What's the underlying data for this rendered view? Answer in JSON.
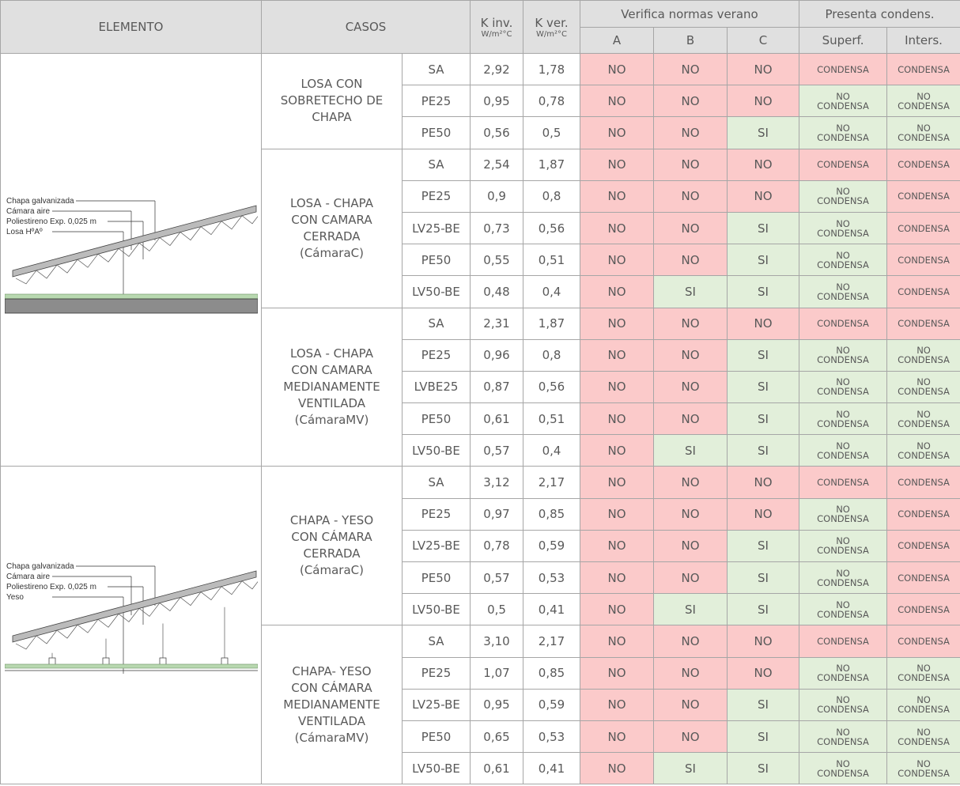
{
  "header": {
    "elemento": "ELEMENTO",
    "casos": "CASOS",
    "k_inv": "K inv.",
    "k_inv_unit": "W/m²°C",
    "k_ver": "K ver.",
    "k_ver_unit": "W/m²°C",
    "verifica": "Verifica normas verano",
    "a": "A",
    "b": "B",
    "c": "C",
    "presenta": "Presenta condens.",
    "superf": "Superf.",
    "inters": "Inters."
  },
  "groups": [
    {
      "element": {
        "labels": [
          "Chapa galvanizada",
          "Cámara aire",
          "Poliestireno Exp. 0,025 m",
          "Losa HºAº"
        ]
      },
      "cases": [
        {
          "name": [
            "LOSA CON",
            "SOBRETECHO DE",
            "CHAPA"
          ],
          "rows": [
            [
              "SA",
              "2,92",
              "1,78",
              "NO",
              "NO",
              "NO",
              "CONDENSA",
              "CONDENSA"
            ],
            [
              "PE25",
              "0,95",
              "0,78",
              "NO",
              "NO",
              "NO",
              "NO CONDENSA",
              "NO CONDENSA"
            ],
            [
              "PE50",
              "0,56",
              "0,5",
              "NO",
              "NO",
              "SI",
              "NO CONDENSA",
              "NO CONDENSA"
            ]
          ]
        },
        {
          "name": [
            "LOSA - CHAPA",
            "CON CAMARA",
            "CERRADA",
            "(CámaraC)"
          ],
          "rows": [
            [
              "SA",
              "2,54",
              "1,87",
              "NO",
              "NO",
              "NO",
              "CONDENSA",
              "CONDENSA"
            ],
            [
              "PE25",
              "0,9",
              "0,8",
              "NO",
              "NO",
              "NO",
              "NO CONDENSA",
              "CONDENSA"
            ],
            [
              "LV25-BE",
              "0,73",
              "0,56",
              "NO",
              "NO",
              "SI",
              "NO CONDENSA",
              "CONDENSA"
            ],
            [
              "PE50",
              "0,55",
              "0,51",
              "NO",
              "NO",
              "SI",
              "NO CONDENSA",
              "CONDENSA"
            ],
            [
              "LV50-BE",
              "0,48",
              "0,4",
              "NO",
              "SI",
              "SI",
              "NO CONDENSA",
              "CONDENSA"
            ]
          ]
        },
        {
          "name": [
            "LOSA - CHAPA",
            "CON CAMARA",
            "MEDIANAMENTE",
            "VENTILADA",
            "(CámaraMV)"
          ],
          "rows": [
            [
              "SA",
              "2,31",
              "1,87",
              "NO",
              "NO",
              "NO",
              "CONDENSA",
              "CONDENSA"
            ],
            [
              "PE25",
              "0,96",
              "0,8",
              "NO",
              "NO",
              "SI",
              "NO CONDENSA",
              "NO CONDENSA"
            ],
            [
              "LVBE25",
              "0,87",
              "0,56",
              "NO",
              "NO",
              "SI",
              "NO CONDENSA",
              "NO CONDENSA"
            ],
            [
              "PE50",
              "0,61",
              "0,51",
              "NO",
              "NO",
              "SI",
              "NO CONDENSA",
              "NO CONDENSA"
            ],
            [
              "LV50-BE",
              "0,57",
              "0,4",
              "NO",
              "SI",
              "SI",
              "NO CONDENSA",
              "NO CONDENSA"
            ]
          ]
        }
      ]
    },
    {
      "element": {
        "labels": [
          "Chapa galvanizada",
          "Cámara aire",
          "Poliestireno Exp. 0,025 m",
          "Yeso"
        ]
      },
      "cases": [
        {
          "name": [
            "CHAPA - YESO",
            "CON CÁMARA",
            "CERRADA",
            "(CámaraC)"
          ],
          "rows": [
            [
              "SA",
              "3,12",
              "2,17",
              "NO",
              "NO",
              "NO",
              "CONDENSA",
              "CONDENSA"
            ],
            [
              "PE25",
              "0,97",
              "0,85",
              "NO",
              "NO",
              "NO",
              "NO CONDENSA",
              "CONDENSA"
            ],
            [
              "LV25-BE",
              "0,78",
              "0,59",
              "NO",
              "NO",
              "SI",
              "NO CONDENSA",
              "CONDENSA"
            ],
            [
              "PE50",
              "0,57",
              "0,53",
              "NO",
              "NO",
              "SI",
              "NO CONDENSA",
              "CONDENSA"
            ],
            [
              "LV50-BE",
              "0,5",
              "0,41",
              "NO",
              "SI",
              "SI",
              "NO CONDENSA",
              "CONDENSA"
            ]
          ]
        },
        {
          "name": [
            "CHAPA- YESO",
            "CON CÁMARA",
            "MEDIANAMENTE",
            "VENTILADA",
            "(CámaraMV)"
          ],
          "rows": [
            [
              "SA",
              "3,10",
              "2,17",
              "NO",
              "NO",
              "NO",
              "CONDENSA",
              "CONDENSA"
            ],
            [
              "PE25",
              "1,07",
              "0,85",
              "NO",
              "NO",
              "NO",
              "NO CONDENSA",
              "NO CONDENSA"
            ],
            [
              "LV25-BE",
              "0,95",
              "0,59",
              "NO",
              "NO",
              "SI",
              "NO CONDENSA",
              "NO CONDENSA"
            ],
            [
              "PE50",
              "0,65",
              "0,53",
              "NO",
              "NO",
              "SI",
              "NO CONDENSA",
              "NO CONDENSA"
            ],
            [
              "LV50-BE",
              "0,61",
              "0,41",
              "NO",
              "SI",
              "SI",
              "NO CONDENSA",
              "NO CONDENSA"
            ]
          ]
        }
      ]
    }
  ]
}
